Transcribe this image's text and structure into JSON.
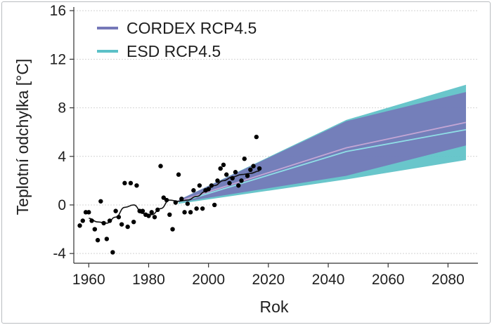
{
  "chart_data": {
    "type": "scatter",
    "title": "",
    "xlabel": "Rok",
    "ylabel": "Teplotní odchylka [°C]",
    "xlim": [
      1955,
      2090
    ],
    "ylim": [
      -4.8,
      16.3
    ],
    "x_ticks": [
      1960,
      1980,
      2000,
      2020,
      2040,
      2060,
      2080
    ],
    "y_ticks": [
      -4,
      0,
      4,
      8,
      12,
      16
    ],
    "x_tick_labels": [
      "1960",
      "1980",
      "2000",
      "2020",
      "2040",
      "2060",
      "2080"
    ],
    "y_tick_labels": [
      "-4",
      "0",
      "4",
      "8",
      "12",
      "16"
    ],
    "grid": {
      "horizontal": true,
      "vertical": false
    },
    "legend_position": "top-left",
    "colors": {
      "cordex": "#7578b8",
      "esd": "#5cc1c7",
      "cordex_median": "#c4a6d4",
      "esd_median": "#8fdfe6",
      "observations": "#000000"
    },
    "series": [
      {
        "name": "CORDEX RCP4.5",
        "kind": "band",
        "x": [
          1990,
          2046,
          2086
        ],
        "lower": [
          0.2,
          2.4,
          4.9
        ],
        "upper": [
          0.4,
          6.9,
          9.3
        ],
        "median_x": [
          1990,
          2046,
          2086
        ],
        "median": [
          0.3,
          4.7,
          6.8
        ]
      },
      {
        "name": "ESD RCP4.5",
        "kind": "band",
        "x": [
          1990,
          2046,
          2086
        ],
        "lower": [
          0.1,
          2.1,
          3.7
        ],
        "upper": [
          0.4,
          7.0,
          9.9
        ],
        "median_x": [
          1990,
          2046,
          2086
        ],
        "median": [
          0.2,
          4.4,
          6.2
        ]
      },
      {
        "kind": "points",
        "x": [
          1957,
          1958,
          1959,
          1960,
          1961,
          1962,
          1963,
          1964,
          1965,
          1966,
          1967,
          1968,
          1969,
          1970,
          1971,
          1972,
          1973,
          1974,
          1975,
          1976,
          1977,
          1978,
          1979,
          1980,
          1981,
          1982,
          1983,
          1984,
          1985,
          1986,
          1987,
          1988,
          1989,
          1990,
          1991,
          1992,
          1993,
          1994,
          1995,
          1996,
          1997,
          1998,
          1999,
          2000,
          2001,
          2002,
          2003,
          2004,
          2005,
          2006,
          2007,
          2008,
          2009,
          2010,
          2011,
          2012,
          2013,
          2014,
          2015,
          2016,
          2017
        ],
        "y": [
          -1.7,
          -1.3,
          -0.6,
          -0.6,
          -1.3,
          -2.0,
          -2.9,
          0.3,
          -1.5,
          -2.8,
          -1.3,
          -3.9,
          -0.5,
          -1.0,
          -1.6,
          1.8,
          -1.8,
          1.8,
          -1.4,
          1.6,
          -0.5,
          -0.5,
          -0.8,
          -0.9,
          -0.6,
          -1.0,
          -0.4,
          3.2,
          0.6,
          0.4,
          -0.8,
          -2.0,
          0.2,
          2.5,
          0.5,
          -0.6,
          0.1,
          -0.6,
          1.2,
          -0.3,
          1.6,
          -0.3,
          1.2,
          1.3,
          1.6,
          0.0,
          2.0,
          3.0,
          3.3,
          2.5,
          1.8,
          2.2,
          2.7,
          1.6,
          2.0,
          3.8,
          2.4,
          2.9,
          3.2,
          5.6,
          3.0
        ]
      },
      {
        "kind": "smooth-line",
        "x": [
          1960,
          1963,
          1966,
          1969,
          1972,
          1975,
          1978,
          1981,
          1984,
          1987,
          1990,
          1993,
          1996,
          1999,
          2002,
          2005,
          2008,
          2011,
          2014,
          2017
        ],
        "y": [
          -1.1,
          -1.4,
          -1.5,
          -1.0,
          -0.2,
          0.0,
          -0.7,
          -0.8,
          -0.3,
          0.4,
          0.3,
          0.4,
          0.7,
          1.1,
          1.6,
          2.0,
          2.3,
          2.5,
          2.6,
          2.8
        ]
      }
    ],
    "legend": [
      {
        "label": "CORDEX RCP4.5",
        "color": "#7578b8"
      },
      {
        "label": "ESD RCP4.5",
        "color": "#5cc1c7"
      }
    ]
  }
}
